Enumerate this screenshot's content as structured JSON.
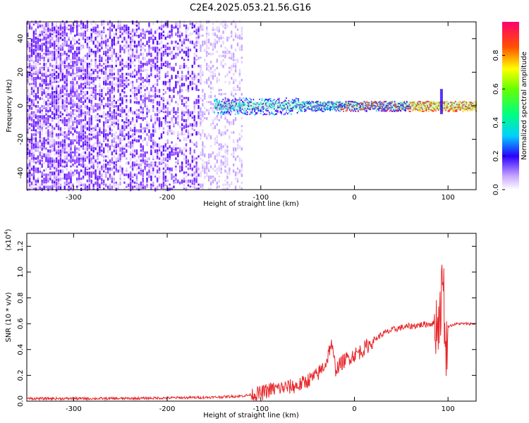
{
  "title": "C2E4.2025.053.21.56.G16",
  "chart_data": [
    {
      "type": "heatmap",
      "xlabel": "Height of straight line (km)",
      "ylabel": "Frequency (Hz)",
      "xlim": [
        -350,
        130
      ],
      "ylim": [
        -50,
        50
      ],
      "xticks": [
        -300,
        -200,
        -100,
        0,
        100
      ],
      "yticks": [
        -40,
        -20,
        0,
        20,
        40
      ],
      "colorbar": {
        "label": "Normalized spectral amplitude",
        "range": [
          0.0,
          1.0
        ],
        "ticks": [
          0.0,
          0.2,
          0.4,
          0.6,
          0.8
        ]
      },
      "features": {
        "noise_region_x": [
          -350,
          -120
        ],
        "line_start_x": -150,
        "line_end_x": 130,
        "line_frequency": 0,
        "strong_spike_x": 93
      }
    },
    {
      "type": "line",
      "xlabel": "Height of straight line (km)",
      "ylabel": "SNR (10 * v/v)",
      "yscale_label": "(x10",
      "yscale_exp": "4",
      "yscale_close": ")",
      "xlim": [
        -350,
        130
      ],
      "ylim": [
        0,
        1.3
      ],
      "xticks": [
        -300,
        -200,
        -100,
        0,
        100
      ],
      "yticks": [
        0.0,
        0.2,
        0.4,
        0.6,
        0.8,
        1.0,
        1.2
      ],
      "line_color": "#e8262a",
      "series": [
        {
          "x": [
            -350,
            -300,
            -250,
            -200,
            -150,
            -120,
            -100,
            -90,
            -80,
            -70,
            -60,
            -50,
            -40,
            -30,
            -25,
            -20,
            -10,
            0,
            10,
            20,
            30,
            40,
            50,
            60,
            70,
            80,
            85,
            90,
            93,
            95,
            97,
            100,
            110,
            120,
            130
          ],
          "values": [
            0.02,
            0.02,
            0.02,
            0.025,
            0.03,
            0.04,
            0.06,
            0.09,
            0.1,
            0.11,
            0.12,
            0.16,
            0.2,
            0.3,
            0.45,
            0.25,
            0.32,
            0.36,
            0.4,
            0.47,
            0.52,
            0.55,
            0.57,
            0.58,
            0.59,
            0.6,
            0.6,
            0.61,
            0.8,
            1.05,
            0.3,
            0.58,
            0.6,
            0.6,
            0.6
          ]
        }
      ]
    }
  ]
}
